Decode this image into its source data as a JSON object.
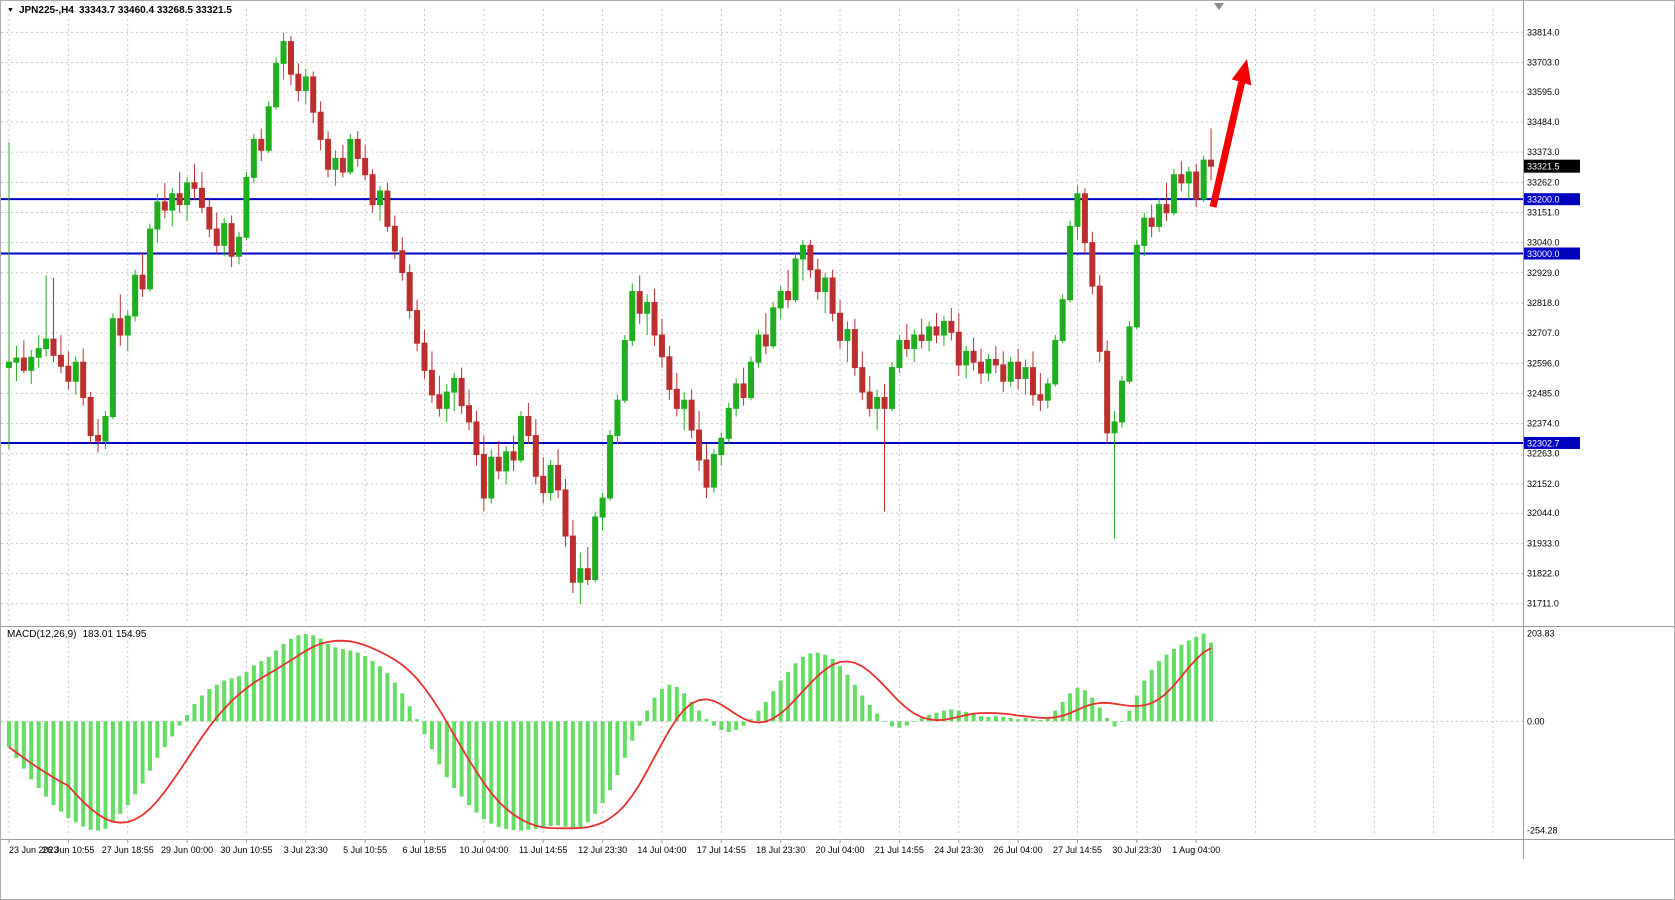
{
  "header": {
    "symbol": "JPN225-,H4",
    "ohlc": "33343.7 33460.4 33268.5 33321.5"
  },
  "macd_panel": {
    "label": "MACD(12,26,9)",
    "values": "183.01 154.95"
  },
  "colors": {
    "bull": "#1fae1f",
    "bear": "#bb2f2f",
    "hist": "#63dd63",
    "signal": "#e8312f",
    "hline": "#0000c0",
    "grid": "#c6c6c6",
    "axis_text": "#000000",
    "marker_bg": "#000000",
    "marker_text": "#ffffff",
    "arrow": "#f40000",
    "separator": "#9a9a9a",
    "shift_marker": "#8a8a8a"
  },
  "chart_data": [
    {
      "type": "candlestick",
      "title": "JPN225-,H4",
      "timeframe": "H4",
      "current_bar": {
        "open": 33343.7,
        "high": 33460.4,
        "low": 33268.5,
        "close": 33321.5
      },
      "ylim": [
        31640,
        33900
      ],
      "grid": true,
      "y_axis_labels": [
        "33814.0",
        "33703.0",
        "33595.0",
        "33484.0",
        "33373.0",
        "33262.0",
        "33151.0",
        "33040.0",
        "32929.0",
        "32818.0",
        "32707.0",
        "32596.0",
        "32485.0",
        "32374.0",
        "32263.0",
        "32152.0",
        "32044.0",
        "31933.0",
        "31822.0",
        "31711.0"
      ],
      "price_marker": {
        "label": "33321.5",
        "value": 33321.5
      },
      "hlines": [
        {
          "label": "33200.0",
          "value": 33200.0
        },
        {
          "label": "33000.0",
          "value": 33000.0
        },
        {
          "label": "32302.7",
          "value": 32302.7
        }
      ],
      "x_labels": [
        "23 Jun 2023",
        "26 Jun 10:55",
        "27 Jun 18:55",
        "29 Jun 00:00",
        "30 Jun 10:55",
        "3 Jul 23:30",
        "5 Jul 10:55",
        "6 Jul 18:55",
        "10 Jul 04:00",
        "11 Jul 14:55",
        "12 Jul 23:30",
        "14 Jul 04:00",
        "17 Jul 14:55",
        "18 Jul 23:30",
        "20 Jul 04:00",
        "21 Jul 14:55",
        "24 Jul 23:30",
        "26 Jul 04:00",
        "27 Jul 14:55",
        "30 Jul 23:30",
        "1 Aug 04:00"
      ],
      "x_label_every": 8,
      "candles": [
        [
          32580,
          33410,
          32280,
          32600
        ],
        [
          32600,
          32660,
          32530,
          32615
        ],
        [
          32615,
          32680,
          32560,
          32570
        ],
        [
          32570,
          32645,
          32520,
          32618
        ],
        [
          32618,
          32700,
          32580,
          32650
        ],
        [
          32650,
          32920,
          32620,
          32685
        ],
        [
          32685,
          32910,
          32600,
          32625
        ],
        [
          32625,
          32700,
          32560,
          32585
        ],
        [
          32585,
          32640,
          32500,
          32530
        ],
        [
          32530,
          32620,
          32480,
          32600
        ],
        [
          32600,
          32650,
          32440,
          32470
        ],
        [
          32470,
          32490,
          32300,
          32330
        ],
        [
          32330,
          32390,
          32268,
          32310
        ],
        [
          32310,
          32420,
          32280,
          32400
        ],
        [
          32400,
          32780,
          32390,
          32760
        ],
        [
          32760,
          32850,
          32660,
          32700
        ],
        [
          32700,
          32790,
          32640,
          32770
        ],
        [
          32770,
          32940,
          32750,
          32920
        ],
        [
          32920,
          33000,
          32840,
          32870
        ],
        [
          32870,
          33110,
          32860,
          33090
        ],
        [
          33090,
          33220,
          33040,
          33190
        ],
        [
          33190,
          33260,
          33130,
          33160
        ],
        [
          33160,
          33240,
          33100,
          33220
        ],
        [
          33220,
          33300,
          33150,
          33180
        ],
        [
          33180,
          33280,
          33120,
          33260
        ],
        [
          33260,
          33330,
          33200,
          33240
        ],
        [
          33240,
          33300,
          33150,
          33170
        ],
        [
          33170,
          33200,
          33060,
          33090
        ],
        [
          33090,
          33150,
          33000,
          33030
        ],
        [
          33030,
          33130,
          32990,
          33110
        ],
        [
          33110,
          33140,
          32950,
          32990
        ],
        [
          32990,
          33080,
          32960,
          33060
        ],
        [
          33060,
          33300,
          33050,
          33280
        ],
        [
          33280,
          33440,
          33260,
          33420
        ],
        [
          33420,
          33460,
          33340,
          33380
        ],
        [
          33380,
          33560,
          33370,
          33540
        ],
        [
          33540,
          33720,
          33530,
          33700
        ],
        [
          33700,
          33812,
          33640,
          33780
        ],
        [
          33780,
          33800,
          33620,
          33660
        ],
        [
          33660,
          33700,
          33560,
          33600
        ],
        [
          33600,
          33680,
          33550,
          33650
        ],
        [
          33650,
          33670,
          33480,
          33520
        ],
        [
          33520,
          33560,
          33380,
          33420
        ],
        [
          33420,
          33450,
          33280,
          33310
        ],
        [
          33310,
          33380,
          33250,
          33350
        ],
        [
          33350,
          33400,
          33280,
          33300
        ],
        [
          33300,
          33440,
          33290,
          33420
        ],
        [
          33420,
          33450,
          33320,
          33350
        ],
        [
          33350,
          33400,
          33270,
          33290
        ],
        [
          33290,
          33310,
          33150,
          33180
        ],
        [
          33180,
          33250,
          33120,
          33230
        ],
        [
          33230,
          33260,
          33080,
          33100
        ],
        [
          33100,
          33140,
          32980,
          33010
        ],
        [
          33010,
          33060,
          32900,
          32930
        ],
        [
          32930,
          32960,
          32760,
          32790
        ],
        [
          32790,
          32830,
          32640,
          32670
        ],
        [
          32670,
          32720,
          32540,
          32570
        ],
        [
          32570,
          32640,
          32450,
          32480
        ],
        [
          32480,
          32550,
          32400,
          32430
        ],
        [
          32430,
          32520,
          32380,
          32490
        ],
        [
          32490,
          32560,
          32420,
          32540
        ],
        [
          32540,
          32580,
          32410,
          32440
        ],
        [
          32440,
          32500,
          32350,
          32380
        ],
        [
          32380,
          32420,
          32220,
          32260
        ],
        [
          32260,
          32330,
          32050,
          32100
        ],
        [
          32100,
          32280,
          32080,
          32250
        ],
        [
          32250,
          32310,
          32170,
          32200
        ],
        [
          32200,
          32290,
          32150,
          32270
        ],
        [
          32270,
          32330,
          32200,
          32240
        ],
        [
          32240,
          32420,
          32230,
          32400
        ],
        [
          32400,
          32450,
          32300,
          32330
        ],
        [
          32330,
          32390,
          32150,
          32180
        ],
        [
          32180,
          32250,
          32080,
          32120
        ],
        [
          32120,
          32240,
          32090,
          32220
        ],
        [
          32220,
          32280,
          32100,
          32130
        ],
        [
          32130,
          32170,
          31920,
          31960
        ],
        [
          31960,
          32020,
          31750,
          31790
        ],
        [
          31790,
          31900,
          31711,
          31840
        ],
        [
          31840,
          31920,
          31780,
          31800
        ],
        [
          31800,
          32050,
          31790,
          32030
        ],
        [
          32030,
          32120,
          31980,
          32100
        ],
        [
          32100,
          32350,
          32090,
          32330
        ],
        [
          32330,
          32480,
          32300,
          32460
        ],
        [
          32460,
          32700,
          32450,
          32680
        ],
        [
          32680,
          32890,
          32660,
          32860
        ],
        [
          32860,
          32920,
          32740,
          32780
        ],
        [
          32780,
          32850,
          32700,
          32820
        ],
        [
          32820,
          32870,
          32660,
          32700
        ],
        [
          32700,
          32760,
          32580,
          32620
        ],
        [
          32620,
          32660,
          32460,
          32500
        ],
        [
          32500,
          32560,
          32400,
          32430
        ],
        [
          32430,
          32490,
          32350,
          32460
        ],
        [
          32460,
          32500,
          32320,
          32350
        ],
        [
          32350,
          32420,
          32200,
          32240
        ],
        [
          32240,
          32300,
          32100,
          32140
        ],
        [
          32140,
          32280,
          32120,
          32260
        ],
        [
          32260,
          32340,
          32220,
          32320
        ],
        [
          32320,
          32450,
          32300,
          32430
        ],
        [
          32430,
          32540,
          32400,
          32520
        ],
        [
          32520,
          32580,
          32440,
          32470
        ],
        [
          32470,
          32620,
          32460,
          32600
        ],
        [
          32600,
          32720,
          32580,
          32700
        ],
        [
          32700,
          32780,
          32630,
          32660
        ],
        [
          32660,
          32820,
          32650,
          32800
        ],
        [
          32800,
          32880,
          32760,
          32860
        ],
        [
          32860,
          32940,
          32800,
          32830
        ],
        [
          32830,
          33000,
          32820,
          32980
        ],
        [
          32980,
          33050,
          32900,
          33030
        ],
        [
          33030,
          33050,
          32910,
          32940
        ],
        [
          32940,
          32980,
          32830,
          32860
        ],
        [
          32860,
          32930,
          32780,
          32910
        ],
        [
          32910,
          32940,
          32750,
          32780
        ],
        [
          32780,
          32830,
          32650,
          32680
        ],
        [
          32680,
          32750,
          32600,
          32720
        ],
        [
          32720,
          32760,
          32550,
          32580
        ],
        [
          32580,
          32640,
          32460,
          32490
        ],
        [
          32490,
          32550,
          32400,
          32430
        ],
        [
          32430,
          32500,
          32350,
          32470
        ],
        [
          32470,
          32520,
          32050,
          32430
        ],
        [
          32430,
          32600,
          32420,
          32580
        ],
        [
          32580,
          32700,
          32560,
          32680
        ],
        [
          32680,
          32740,
          32620,
          32650
        ],
        [
          32650,
          32720,
          32600,
          32700
        ],
        [
          32700,
          32760,
          32650,
          32680
        ],
        [
          32680,
          32750,
          32640,
          32730
        ],
        [
          32730,
          32780,
          32670,
          32700
        ],
        [
          32700,
          32770,
          32660,
          32750
        ],
        [
          32750,
          32800,
          32680,
          32710
        ],
        [
          32710,
          32780,
          32550,
          32590
        ],
        [
          32590,
          32660,
          32540,
          32640
        ],
        [
          32640,
          32690,
          32570,
          32600
        ],
        [
          32600,
          32650,
          32520,
          32560
        ],
        [
          32560,
          32630,
          32530,
          32610
        ],
        [
          32610,
          32660,
          32560,
          32590
        ],
        [
          32590,
          32640,
          32490,
          32530
        ],
        [
          32530,
          32620,
          32510,
          32600
        ],
        [
          32600,
          32650,
          32500,
          32540
        ],
        [
          32540,
          32610,
          32480,
          32580
        ],
        [
          32580,
          32640,
          32440,
          32480
        ],
        [
          32480,
          32560,
          32420,
          32460
        ],
        [
          32460,
          32540,
          32430,
          32520
        ],
        [
          32520,
          32700,
          32510,
          32680
        ],
        [
          32680,
          32850,
          32670,
          32830
        ],
        [
          32830,
          33120,
          32820,
          33100
        ],
        [
          33100,
          33250,
          33050,
          33220
        ],
        [
          33220,
          33240,
          33000,
          33040
        ],
        [
          33040,
          33080,
          32850,
          32880
        ],
        [
          32880,
          32920,
          32600,
          32640
        ],
        [
          32640,
          32680,
          32300,
          32340
        ],
        [
          32340,
          32420,
          31950,
          32380
        ],
        [
          32380,
          32550,
          32360,
          32530
        ],
        [
          32530,
          32750,
          32520,
          32730
        ],
        [
          32730,
          33050,
          32720,
          33030
        ],
        [
          33030,
          33150,
          32990,
          33130
        ],
        [
          33130,
          33180,
          33060,
          33100
        ],
        [
          33100,
          33200,
          33080,
          33180
        ],
        [
          33180,
          33260,
          33120,
          33150
        ],
        [
          33150,
          33310,
          33140,
          33290
        ],
        [
          33290,
          33340,
          33230,
          33260
        ],
        [
          33260,
          33320,
          33200,
          33300
        ],
        [
          33300,
          33330,
          33170,
          33200
        ],
        [
          33200,
          33360,
          33190,
          33343.7
        ],
        [
          33343.7,
          33460.4,
          33268.5,
          33321.5
        ]
      ]
    },
    {
      "type": "bar",
      "name": "MACD(12,26,9)",
      "last_values": {
        "macd": 183.01,
        "signal": 154.95
      },
      "signal_period": 9,
      "ylim": [
        -262,
        210
      ],
      "axis_labels": [
        "203.83",
        "0.00",
        "-254.28"
      ],
      "values": [
        -60,
        -85,
        -110,
        -135,
        -155,
        -175,
        -195,
        -210,
        -225,
        -235,
        -245,
        -252,
        -254,
        -250,
        -235,
        -215,
        -195,
        -170,
        -145,
        -115,
        -85,
        -60,
        -35,
        -10,
        15,
        40,
        60,
        75,
        85,
        95,
        100,
        105,
        115,
        130,
        140,
        150,
        165,
        180,
        192,
        200,
        203,
        200,
        192,
        180,
        172,
        168,
        165,
        160,
        152,
        140,
        128,
        112,
        90,
        65,
        35,
        5,
        -30,
        -65,
        -100,
        -130,
        -155,
        -175,
        -195,
        -212,
        -228,
        -238,
        -246,
        -250,
        -253,
        -254,
        -252,
        -250,
        -248,
        -244,
        -242,
        -245,
        -250,
        -248,
        -235,
        -215,
        -190,
        -160,
        -125,
        -85,
        -45,
        -10,
        25,
        55,
        75,
        85,
        80,
        65,
        45,
        25,
        5,
        -10,
        -20,
        -25,
        -20,
        -10,
        5,
        25,
        45,
        70,
        95,
        115,
        135,
        150,
        158,
        160,
        155,
        145,
        128,
        108,
        85,
        60,
        38,
        18,
        0,
        -12,
        -15,
        -10,
        0,
        8,
        15,
        20,
        25,
        28,
        25,
        22,
        18,
        12,
        10,
        12,
        10,
        8,
        5,
        8,
        5,
        3,
        8,
        25,
        45,
        65,
        78,
        72,
        55,
        32,
        8,
        -12,
        0,
        25,
        60,
        95,
        120,
        140,
        155,
        168,
        178,
        188,
        196,
        203.83,
        183.01
      ]
    }
  ]
}
